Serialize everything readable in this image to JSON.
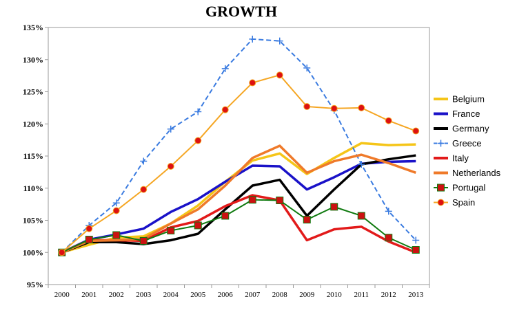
{
  "chart_data": {
    "type": "line",
    "title": "GROWTH",
    "xlabel": "",
    "ylabel": "",
    "x": [
      "2000",
      "2001",
      "2002",
      "2003",
      "2004",
      "2005",
      "2006",
      "2007",
      "2008",
      "2009",
      "2010",
      "2011",
      "2012",
      "2013"
    ],
    "ylim": [
      95,
      135
    ],
    "yticks": [
      95,
      100,
      105,
      110,
      115,
      120,
      125,
      130,
      135
    ],
    "ytick_labels": [
      "95%",
      "100%",
      "105%",
      "110%",
      "115%",
      "120%",
      "125%",
      "130%",
      "135%"
    ],
    "grid": false,
    "legend_position": "right",
    "series": [
      {
        "name": "Belgium",
        "color": "#f5c518",
        "marker": "none",
        "values": [
          100,
          101.2,
          102.3,
          102.5,
          104.5,
          107.3,
          111.0,
          114.3,
          115.4,
          112.2,
          114.7,
          117.0,
          116.7,
          116.8
        ]
      },
      {
        "name": "France",
        "color": "#1a12c8",
        "marker": "none",
        "values": [
          100,
          102.0,
          102.8,
          103.7,
          106.3,
          108.3,
          111.0,
          113.5,
          113.4,
          109.8,
          111.7,
          113.8,
          114.1,
          114.2
        ]
      },
      {
        "name": "Germany",
        "color": "#000000",
        "marker": "none",
        "values": [
          100,
          101.6,
          101.6,
          101.3,
          101.9,
          102.9,
          106.7,
          110.4,
          111.3,
          105.7,
          109.8,
          113.7,
          114.5,
          115.1
        ]
      },
      {
        "name": "Greece",
        "color": "#3a7be0",
        "marker": "plus",
        "dashed": true,
        "values": [
          100,
          104.2,
          107.7,
          114.2,
          119.2,
          121.9,
          128.6,
          133.2,
          132.9,
          128.7,
          122.1,
          113.7,
          106.4,
          101.9
        ]
      },
      {
        "name": "Italy",
        "color": "#e21a1a",
        "marker": "none",
        "values": [
          100,
          101.9,
          101.9,
          101.8,
          103.9,
          104.9,
          107.2,
          108.9,
          108.1,
          101.9,
          103.6,
          104.0,
          101.7,
          100.0
        ]
      },
      {
        "name": "Netherlands",
        "color": "#ef7a2a",
        "marker": "none",
        "values": [
          100,
          101.8,
          101.9,
          102.1,
          104.5,
          106.7,
          110.4,
          114.7,
          116.6,
          112.4,
          114.2,
          115.2,
          113.9,
          112.4
        ]
      },
      {
        "name": "Portugal",
        "color": "#0f7a0f",
        "marker": "square",
        "marker_color": "#cc1111",
        "values": [
          100,
          102.0,
          102.7,
          101.8,
          103.4,
          104.2,
          105.7,
          108.2,
          108.1,
          105.1,
          107.1,
          105.7,
          102.3,
          100.4
        ]
      },
      {
        "name": "Spain",
        "color": "#f5a623",
        "marker": "circle",
        "marker_color": "#dd1111",
        "values": [
          100,
          103.7,
          106.5,
          109.8,
          113.4,
          117.4,
          122.2,
          126.4,
          127.6,
          122.7,
          122.4,
          122.5,
          120.5,
          118.9
        ]
      }
    ]
  }
}
